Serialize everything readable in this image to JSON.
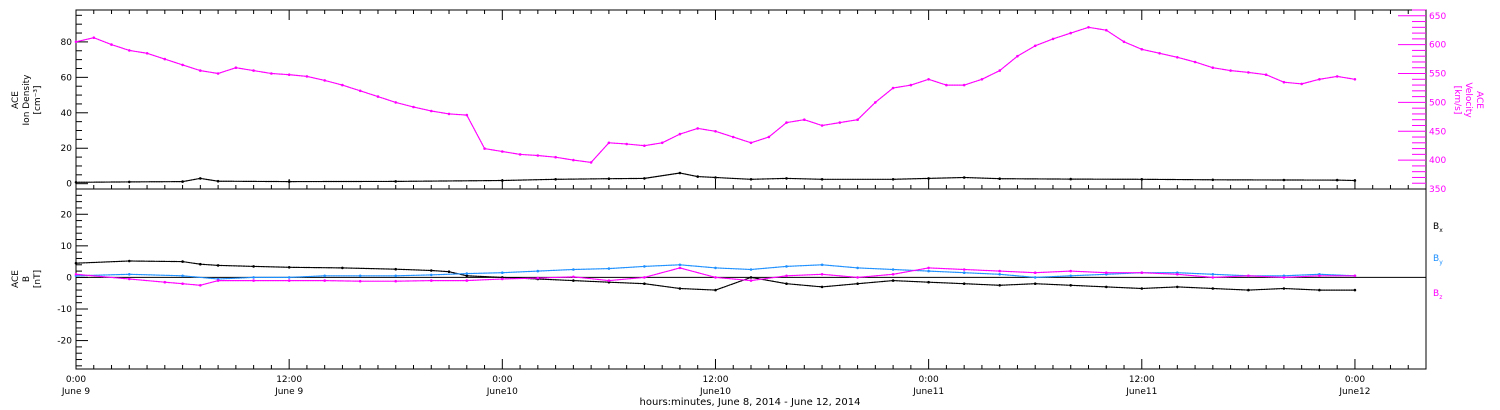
{
  "chart_data": [
    {
      "type": "scatter",
      "panel": "top",
      "left_axis": {
        "label_lines": [
          "ACE",
          "Ion Density",
          "[cm⁻³]"
        ],
        "range": [
          -3,
          98
        ],
        "major_ticks": [
          0,
          20,
          40,
          60,
          80
        ],
        "minor_step": 5
      },
      "right_axis": {
        "label_lines": [
          "ACE",
          "Velocity",
          "[km/s]"
        ],
        "range": [
          350,
          660
        ],
        "major_ticks": [
          350,
          400,
          450,
          500,
          550,
          600,
          650
        ],
        "minor_step": 10
      },
      "series": [
        {
          "axis": "left",
          "color": "#000000",
          "points": [
            [
              0,
              0.8
            ],
            [
              3,
              1
            ],
            [
              6,
              1.2
            ],
            [
              7,
              3
            ],
            [
              8,
              1.4
            ],
            [
              12,
              1.2
            ],
            [
              18,
              1.3
            ],
            [
              24,
              1.8
            ],
            [
              27,
              2.5
            ],
            [
              30,
              2.8
            ],
            [
              32,
              3
            ],
            [
              34,
              6
            ],
            [
              35,
              4
            ],
            [
              36,
              3.5
            ],
            [
              38,
              2.5
            ],
            [
              40,
              3
            ],
            [
              42,
              2.5
            ],
            [
              46,
              2.5
            ],
            [
              48,
              3
            ],
            [
              50,
              3.5
            ],
            [
              52,
              2.8
            ],
            [
              56,
              2.6
            ],
            [
              60,
              2.5
            ],
            [
              64,
              2.2
            ],
            [
              68,
              2.1
            ],
            [
              71,
              2
            ],
            [
              72,
              1.8
            ]
          ]
        },
        {
          "axis": "right",
          "color": "#ff00ff",
          "points": [
            [
              0,
              605
            ],
            [
              1,
              612
            ],
            [
              2,
              600
            ],
            [
              3,
              590
            ],
            [
              4,
              585
            ],
            [
              5,
              575
            ],
            [
              6,
              565
            ],
            [
              7,
              555
            ],
            [
              8,
              550
            ],
            [
              9,
              560
            ],
            [
              10,
              555
            ],
            [
              11,
              550
            ],
            [
              12,
              548
            ],
            [
              13,
              545
            ],
            [
              14,
              538
            ],
            [
              15,
              530
            ],
            [
              16,
              520
            ],
            [
              17,
              510
            ],
            [
              18,
              500
            ],
            [
              19,
              492
            ],
            [
              20,
              485
            ],
            [
              21,
              480
            ],
            [
              22,
              478
            ],
            [
              23,
              420
            ],
            [
              24,
              415
            ],
            [
              25,
              410
            ],
            [
              26,
              408
            ],
            [
              27,
              405
            ],
            [
              28,
              400
            ],
            [
              29,
              396
            ],
            [
              30,
              430
            ],
            [
              31,
              428
            ],
            [
              32,
              425
            ],
            [
              33,
              430
            ],
            [
              34,
              445
            ],
            [
              35,
              455
            ],
            [
              36,
              450
            ],
            [
              37,
              440
            ],
            [
              38,
              430
            ],
            [
              39,
              440
            ],
            [
              40,
              465
            ],
            [
              41,
              470
            ],
            [
              42,
              460
            ],
            [
              43,
              465
            ],
            [
              44,
              470
            ],
            [
              45,
              500
            ],
            [
              46,
              525
            ],
            [
              47,
              530
            ],
            [
              48,
              540
            ],
            [
              49,
              530
            ],
            [
              50,
              530
            ],
            [
              51,
              540
            ],
            [
              52,
              555
            ],
            [
              53,
              580
            ],
            [
              54,
              598
            ],
            [
              55,
              610
            ],
            [
              56,
              620
            ],
            [
              57,
              630
            ],
            [
              58,
              625
            ],
            [
              59,
              605
            ],
            [
              60,
              592
            ],
            [
              61,
              585
            ],
            [
              62,
              578
            ],
            [
              63,
              570
            ],
            [
              64,
              560
            ],
            [
              65,
              555
            ],
            [
              66,
              552
            ],
            [
              67,
              548
            ],
            [
              68,
              535
            ],
            [
              69,
              532
            ],
            [
              70,
              540
            ],
            [
              71,
              545
            ],
            [
              72,
              540
            ]
          ]
        }
      ],
      "xlim": [
        0,
        76
      ]
    },
    {
      "type": "scatter",
      "panel": "bottom",
      "left_axis": {
        "label_lines": [
          "ACE",
          "B",
          "[nT]"
        ],
        "range": [
          -29,
          28
        ],
        "major_ticks": [
          -20,
          -10,
          0,
          10,
          20
        ],
        "minor_step": 2
      },
      "zero_line": true,
      "series": [
        {
          "name": "Bx",
          "legend_base": "B",
          "legend_sub": "x",
          "color": "#000000",
          "points": [
            [
              0,
              4.5
            ],
            [
              3,
              5.2
            ],
            [
              6,
              5
            ],
            [
              7,
              4.2
            ],
            [
              8,
              3.8
            ],
            [
              10,
              3.5
            ],
            [
              12,
              3.2
            ],
            [
              15,
              3
            ],
            [
              18,
              2.6
            ],
            [
              20,
              2.2
            ],
            [
              21,
              1.8
            ],
            [
              22,
              0.5
            ],
            [
              24,
              0
            ],
            [
              26,
              -0.5
            ],
            [
              28,
              -1
            ],
            [
              30,
              -1.5
            ],
            [
              32,
              -2
            ],
            [
              34,
              -3.5
            ],
            [
              36,
              -4
            ],
            [
              38,
              0
            ],
            [
              40,
              -2
            ],
            [
              42,
              -3
            ],
            [
              44,
              -2
            ],
            [
              46,
              -1
            ],
            [
              48,
              -1.5
            ],
            [
              50,
              -2
            ],
            [
              52,
              -2.5
            ],
            [
              54,
              -2
            ],
            [
              56,
              -2.5
            ],
            [
              58,
              -3
            ],
            [
              60,
              -3.5
            ],
            [
              62,
              -3
            ],
            [
              64,
              -3.5
            ],
            [
              66,
              -4
            ],
            [
              68,
              -3.5
            ],
            [
              70,
              -4
            ],
            [
              72,
              -4
            ]
          ]
        },
        {
          "name": "By",
          "legend_base": "B",
          "legend_sub": "y",
          "color": "#1e90ff",
          "points": [
            [
              0,
              0.5
            ],
            [
              3,
              1
            ],
            [
              6,
              0.5
            ],
            [
              8,
              -0.5
            ],
            [
              10,
              0
            ],
            [
              12,
              0
            ],
            [
              14,
              0.5
            ],
            [
              16,
              0.5
            ],
            [
              18,
              0.5
            ],
            [
              20,
              0.8
            ],
            [
              22,
              1.2
            ],
            [
              24,
              1.5
            ],
            [
              26,
              2
            ],
            [
              28,
              2.5
            ],
            [
              30,
              2.8
            ],
            [
              32,
              3.5
            ],
            [
              34,
              4
            ],
            [
              36,
              3
            ],
            [
              38,
              2.5
            ],
            [
              40,
              3.5
            ],
            [
              42,
              4
            ],
            [
              44,
              3
            ],
            [
              46,
              2.5
            ],
            [
              48,
              2
            ],
            [
              50,
              1.5
            ],
            [
              52,
              1
            ],
            [
              54,
              0
            ],
            [
              56,
              0.5
            ],
            [
              58,
              1
            ],
            [
              60,
              1.5
            ],
            [
              62,
              1.5
            ],
            [
              64,
              1
            ],
            [
              66,
              0.5
            ],
            [
              68,
              0.5
            ],
            [
              70,
              1
            ],
            [
              72,
              0.5
            ]
          ]
        },
        {
          "name": "Bz",
          "legend_base": "B",
          "legend_sub": "z",
          "color": "#ff00ff",
          "points": [
            [
              0,
              1
            ],
            [
              3,
              -0.5
            ],
            [
              5,
              -1.5
            ],
            [
              6,
              -2
            ],
            [
              7,
              -2.5
            ],
            [
              8,
              -1
            ],
            [
              10,
              -1
            ],
            [
              12,
              -1
            ],
            [
              14,
              -1
            ],
            [
              16,
              -1.2
            ],
            [
              18,
              -1.2
            ],
            [
              20,
              -1
            ],
            [
              22,
              -1
            ],
            [
              24,
              -0.5
            ],
            [
              26,
              -0.2
            ],
            [
              28,
              0.2
            ],
            [
              30,
              -1
            ],
            [
              32,
              0
            ],
            [
              34,
              3
            ],
            [
              36,
              0
            ],
            [
              38,
              -1
            ],
            [
              40,
              0.5
            ],
            [
              42,
              1
            ],
            [
              44,
              0
            ],
            [
              46,
              1
            ],
            [
              48,
              3
            ],
            [
              50,
              2.5
            ],
            [
              52,
              2
            ],
            [
              54,
              1.5
            ],
            [
              56,
              2
            ],
            [
              58,
              1.5
            ],
            [
              60,
              1.5
            ],
            [
              62,
              1
            ],
            [
              64,
              0
            ],
            [
              66,
              0.5
            ],
            [
              68,
              0
            ],
            [
              70,
              0.5
            ],
            [
              72,
              0.5
            ]
          ]
        }
      ],
      "xlim": [
        0,
        76
      ]
    }
  ],
  "x_axis": {
    "major_ticks": [
      {
        "hours": 0,
        "line1": "0:00",
        "line2": "June 9"
      },
      {
        "hours": 12,
        "line1": "12:00",
        "line2": "June 9"
      },
      {
        "hours": 24,
        "line1": "0:00",
        "line2": "June10"
      },
      {
        "hours": 36,
        "line1": "12:00",
        "line2": "June10"
      },
      {
        "hours": 48,
        "line1": "0:00",
        "line2": "June11"
      },
      {
        "hours": 60,
        "line1": "12:00",
        "line2": "June11"
      },
      {
        "hours": 72,
        "line1": "0:00",
        "line2": "June12"
      }
    ],
    "minor_step_hours": 1,
    "title": "hours:minutes,  June  8, 2014 - June 12, 2014"
  }
}
